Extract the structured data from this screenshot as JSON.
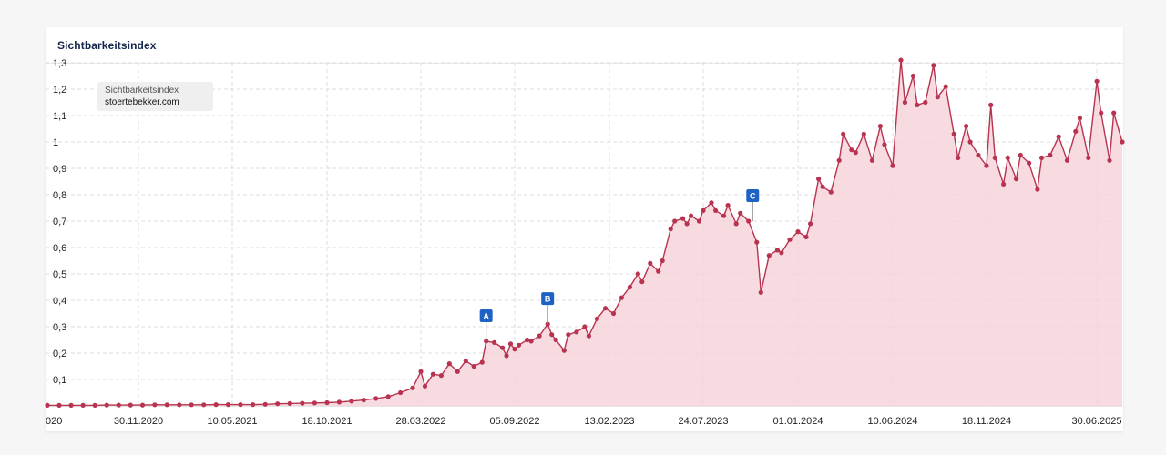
{
  "card": {
    "title": "Sichtbarkeitsindex"
  },
  "legend": {
    "label": "Sichtbarkeitsindex",
    "domain": "stoertebekker.com"
  },
  "colors": {
    "line": "#b8334f",
    "fill": "#f6d5da",
    "marker": "#1e63c4",
    "grid": "#dddddd"
  },
  "chart_data": {
    "type": "area",
    "title": "Sichtbarkeitsindex",
    "ylim": [
      0,
      1.3
    ],
    "y_ticks": [
      "0,1",
      "0,2",
      "0,3",
      "0,4",
      "0,5",
      "0,6",
      "0,7",
      "0,8",
      "0,9",
      "1",
      "1,1",
      "1,2",
      "1,3"
    ],
    "x_ticks": [
      "020",
      "30.11.2020",
      "10.05.2021",
      "18.10.2021",
      "28.03.2022",
      "05.09.2022",
      "13.02.2023",
      "24.07.2023",
      "01.01.2024",
      "10.06.2024",
      "18.11.2024",
      "30.06.2025"
    ],
    "grid": true,
    "legend_position": "top-left",
    "series": [
      {
        "name": "stoertebekker.com",
        "points": [
          [
            "2020-06-22",
            0.002
          ],
          [
            "2020-07-13",
            0.002
          ],
          [
            "2020-08-03",
            0.002
          ],
          [
            "2020-08-24",
            0.002
          ],
          [
            "2020-09-14",
            0.002
          ],
          [
            "2020-10-05",
            0.003
          ],
          [
            "2020-10-26",
            0.003
          ],
          [
            "2020-11-16",
            0.003
          ],
          [
            "2020-12-07",
            0.003
          ],
          [
            "2020-12-28",
            0.004
          ],
          [
            "2021-01-18",
            0.004
          ],
          [
            "2021-02-08",
            0.004
          ],
          [
            "2021-03-01",
            0.004
          ],
          [
            "2021-03-22",
            0.004
          ],
          [
            "2021-04-12",
            0.005
          ],
          [
            "2021-05-03",
            0.005
          ],
          [
            "2021-05-24",
            0.005
          ],
          [
            "2021-06-14",
            0.005
          ],
          [
            "2021-07-05",
            0.006
          ],
          [
            "2021-07-26",
            0.008
          ],
          [
            "2021-08-16",
            0.009
          ],
          [
            "2021-09-06",
            0.01
          ],
          [
            "2021-09-27",
            0.011
          ],
          [
            "2021-10-18",
            0.012
          ],
          [
            "2021-11-08",
            0.014
          ],
          [
            "2021-11-29",
            0.018
          ],
          [
            "2021-12-20",
            0.022
          ],
          [
            "2022-01-10",
            0.028
          ],
          [
            "2022-01-31",
            0.035
          ],
          [
            "2022-02-21",
            0.05
          ],
          [
            "2022-03-14",
            0.068
          ],
          [
            "2022-03-28",
            0.13
          ],
          [
            "2022-04-04",
            0.075
          ],
          [
            "2022-04-18",
            0.12
          ],
          [
            "2022-05-02",
            0.115
          ],
          [
            "2022-05-16",
            0.16
          ],
          [
            "2022-05-30",
            0.13
          ],
          [
            "2022-06-13",
            0.17
          ],
          [
            "2022-06-27",
            0.15
          ],
          [
            "2022-07-11",
            0.165
          ],
          [
            "2022-07-18",
            0.245
          ],
          [
            "2022-08-01",
            0.24
          ],
          [
            "2022-08-15",
            0.22
          ],
          [
            "2022-08-22",
            0.19
          ],
          [
            "2022-08-29",
            0.235
          ],
          [
            "2022-09-05",
            0.215
          ],
          [
            "2022-09-12",
            0.23
          ],
          [
            "2022-09-26",
            0.25
          ],
          [
            "2022-10-03",
            0.245
          ],
          [
            "2022-10-17",
            0.265
          ],
          [
            "2022-10-31",
            0.31
          ],
          [
            "2022-11-07",
            0.27
          ],
          [
            "2022-11-14",
            0.25
          ],
          [
            "2022-11-28",
            0.21
          ],
          [
            "2022-12-05",
            0.27
          ],
          [
            "2022-12-19",
            0.28
          ],
          [
            "2023-01-02",
            0.3
          ],
          [
            "2023-01-09",
            0.265
          ],
          [
            "2023-01-23",
            0.33
          ],
          [
            "2023-02-06",
            0.37
          ],
          [
            "2023-02-20",
            0.35
          ],
          [
            "2023-03-06",
            0.41
          ],
          [
            "2023-03-20",
            0.45
          ],
          [
            "2023-04-03",
            0.5
          ],
          [
            "2023-04-10",
            0.47
          ],
          [
            "2023-04-24",
            0.54
          ],
          [
            "2023-05-08",
            0.51
          ],
          [
            "2023-05-15",
            0.55
          ],
          [
            "2023-05-29",
            0.67
          ],
          [
            "2023-06-05",
            0.7
          ],
          [
            "2023-06-19",
            0.71
          ],
          [
            "2023-06-26",
            0.69
          ],
          [
            "2023-07-03",
            0.72
          ],
          [
            "2023-07-17",
            0.7
          ],
          [
            "2023-07-24",
            0.74
          ],
          [
            "2023-08-07",
            0.77
          ],
          [
            "2023-08-14",
            0.74
          ],
          [
            "2023-08-28",
            0.72
          ],
          [
            "2023-09-04",
            0.76
          ],
          [
            "2023-09-18",
            0.69
          ],
          [
            "2023-09-25",
            0.73
          ],
          [
            "2023-10-09",
            0.7
          ],
          [
            "2023-10-23",
            0.62
          ],
          [
            "2023-10-30",
            0.43
          ],
          [
            "2023-11-13",
            0.57
          ],
          [
            "2023-11-27",
            0.59
          ],
          [
            "2023-12-04",
            0.58
          ],
          [
            "2023-12-18",
            0.63
          ],
          [
            "2024-01-01",
            0.66
          ],
          [
            "2024-01-15",
            0.64
          ],
          [
            "2024-01-22",
            0.69
          ],
          [
            "2024-02-05",
            0.86
          ],
          [
            "2024-02-12",
            0.83
          ],
          [
            "2024-02-26",
            0.81
          ],
          [
            "2024-03-11",
            0.93
          ],
          [
            "2024-03-18",
            1.03
          ],
          [
            "2024-04-01",
            0.97
          ],
          [
            "2024-04-08",
            0.96
          ],
          [
            "2024-04-22",
            1.03
          ],
          [
            "2024-05-06",
            0.93
          ],
          [
            "2024-05-20",
            1.06
          ],
          [
            "2024-05-27",
            0.99
          ],
          [
            "2024-06-10",
            0.91
          ],
          [
            "2024-06-24",
            1.31
          ],
          [
            "2024-07-01",
            1.15
          ],
          [
            "2024-07-15",
            1.25
          ],
          [
            "2024-07-22",
            1.14
          ],
          [
            "2024-08-05",
            1.15
          ],
          [
            "2024-08-19",
            1.29
          ],
          [
            "2024-08-26",
            1.17
          ],
          [
            "2024-09-09",
            1.21
          ],
          [
            "2024-09-23",
            1.03
          ],
          [
            "2024-09-30",
            0.94
          ],
          [
            "2024-10-14",
            1.06
          ],
          [
            "2024-10-21",
            1.0
          ],
          [
            "2024-11-04",
            0.95
          ],
          [
            "2024-11-18",
            0.91
          ],
          [
            "2024-11-25",
            1.14
          ],
          [
            "2024-12-02",
            0.94
          ],
          [
            "2024-12-16",
            0.84
          ],
          [
            "2024-12-23",
            0.94
          ],
          [
            "2025-01-06",
            0.86
          ],
          [
            "2025-01-13",
            0.95
          ],
          [
            "2025-01-27",
            0.92
          ],
          [
            "2025-02-10",
            0.82
          ],
          [
            "2025-02-17",
            0.94
          ],
          [
            "2025-03-03",
            0.95
          ],
          [
            "2025-03-17",
            1.02
          ],
          [
            "2025-03-31",
            0.93
          ],
          [
            "2025-04-14",
            1.04
          ],
          [
            "2025-04-21",
            1.09
          ],
          [
            "2025-05-05",
            0.94
          ],
          [
            "2025-05-19",
            1.23
          ],
          [
            "2025-05-26",
            1.11
          ],
          [
            "2025-06-09",
            0.93
          ],
          [
            "2025-06-16",
            1.11
          ],
          [
            "2025-06-30",
            1.0
          ]
        ]
      }
    ],
    "markers": [
      {
        "label": "A",
        "date": "2022-07-18"
      },
      {
        "label": "B",
        "date": "2022-10-31"
      },
      {
        "label": "C",
        "date": "2023-10-16"
      }
    ]
  }
}
